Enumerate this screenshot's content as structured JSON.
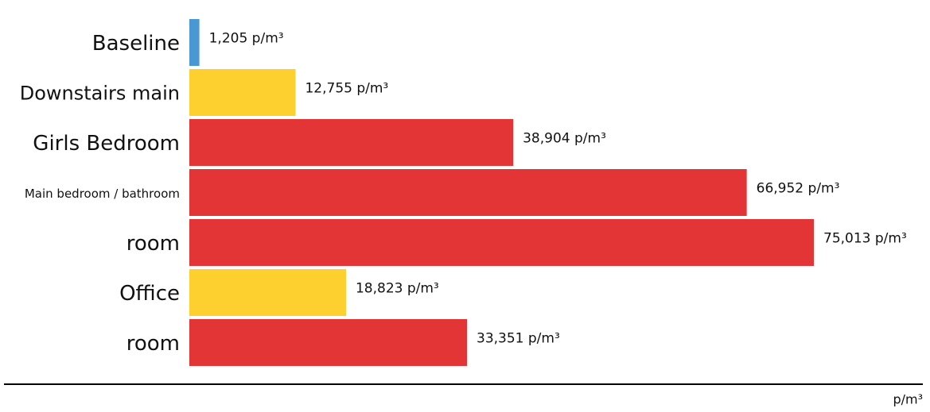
{
  "chart_data": {
    "type": "bar",
    "orientation": "horizontal",
    "categories": [
      "Baseline",
      "Downstairs main",
      "Girls Bedroom",
      "Main bedroom / bathroom",
      "room",
      "Office",
      "room"
    ],
    "values": [
      1205,
      12755,
      38904,
      66952,
      75013,
      18823,
      33351
    ],
    "value_labels": [
      "1,205 p/m³",
      "12,755 p/m³",
      "38,904 p/m³",
      "66,952 p/m³",
      "75,013 p/m³",
      "18,823 p/m³",
      "33,351 p/m³"
    ],
    "colors": [
      "#4a98d3",
      "#fdd030",
      "#e33535",
      "#e33535",
      "#e33535",
      "#fdd030",
      "#e33535"
    ],
    "x_label": "p/m³"
  }
}
